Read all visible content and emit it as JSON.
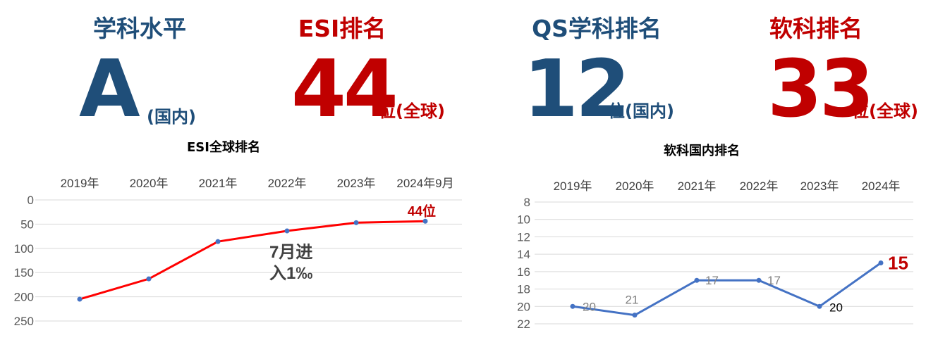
{
  "colors": {
    "blue": "#1f4e79",
    "red": "#c00000",
    "esi_line": "#ff0000",
    "rk_line": "#4472c4",
    "point": "#4472c4"
  },
  "panels": [
    {
      "title": "学科水平",
      "value": "A",
      "suffix": "(国内)",
      "color": "#1f4e79"
    },
    {
      "title": "ESI排名",
      "value": "44",
      "suffix": "位(全球)",
      "color": "#c00000"
    },
    {
      "title": "QS学科排名",
      "value": "12",
      "suffix": "位(国内)",
      "color": "#1f4e79"
    },
    {
      "title": "软科排名",
      "value": "33",
      "suffix": "位(全球)",
      "color": "#c00000"
    }
  ],
  "chart_data": [
    {
      "type": "line",
      "title": "ESI全球排名",
      "categories": [
        "2019年",
        "2020年",
        "2021年",
        "2022年",
        "2023年",
        "2024年9月"
      ],
      "values": [
        205,
        163,
        86,
        64,
        47,
        44
      ],
      "ylim": [
        0,
        250
      ],
      "yticks": [
        0,
        50,
        100,
        150,
        200,
        250
      ],
      "y_reversed": true,
      "grid": true,
      "annotations": [
        {
          "text": "44位",
          "at": "2024年9月"
        },
        {
          "text": "7月进\n入1‰",
          "lines": [
            "7月进",
            "入1‰"
          ]
        }
      ]
    },
    {
      "type": "line",
      "title": "软科国内排名",
      "categories": [
        "2019年",
        "2020年",
        "2021年",
        "2022年",
        "2023年",
        "2024年"
      ],
      "values": [
        20,
        21,
        17,
        17,
        20,
        15
      ],
      "ylim": [
        8,
        22
      ],
      "yticks": [
        8,
        10,
        12,
        14,
        16,
        18,
        20,
        22
      ],
      "y_reversed": true,
      "grid": true,
      "data_labels": [
        "20",
        "21",
        "17",
        "17",
        "20",
        "15"
      ]
    }
  ]
}
